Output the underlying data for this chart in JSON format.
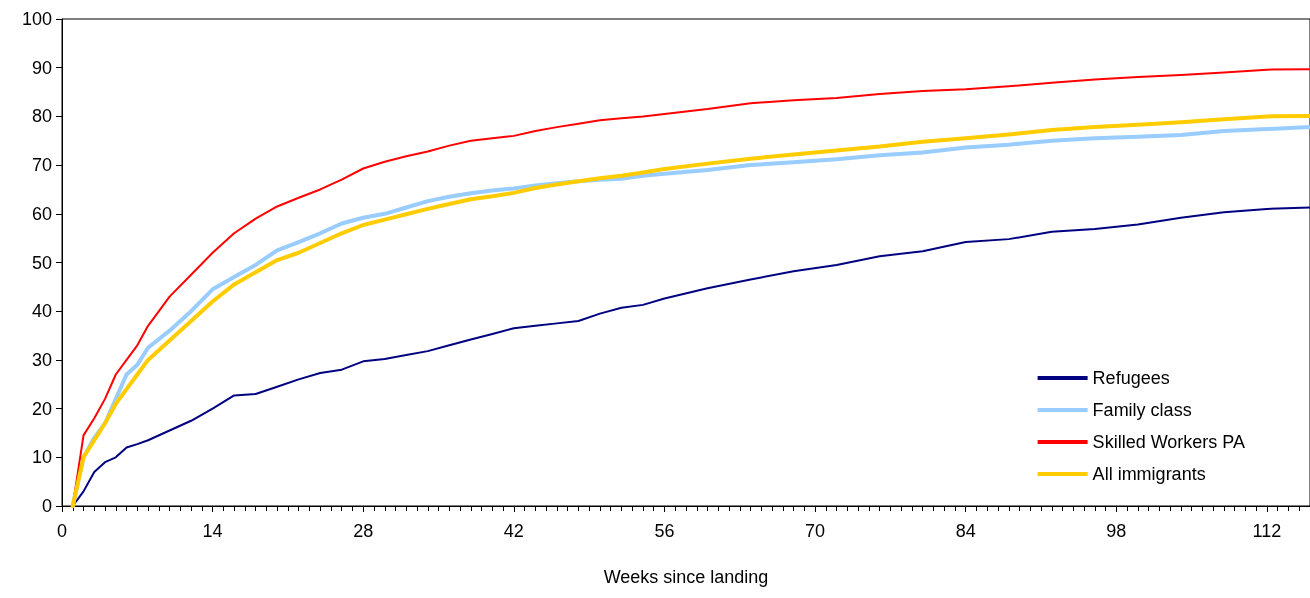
{
  "chart_data": {
    "type": "line",
    "xlabel": "Weeks since landing",
    "x": [
      1,
      2,
      3,
      4,
      5,
      6,
      7,
      8,
      10,
      12,
      14,
      16,
      18,
      20,
      22,
      24,
      26,
      28,
      30,
      32,
      34,
      36,
      38,
      40,
      42,
      44,
      46,
      48,
      50,
      52,
      54,
      56,
      60,
      64,
      68,
      72,
      76,
      80,
      84,
      88,
      92,
      96,
      100,
      104,
      108,
      112,
      116
    ],
    "xlim": [
      0,
      116
    ],
    "xticks": [
      0,
      14,
      28,
      42,
      56,
      70,
      84,
      98,
      112
    ],
    "ylim": [
      0,
      100
    ],
    "yticks": [
      0,
      10,
      20,
      30,
      40,
      50,
      60,
      70,
      80,
      90,
      100
    ],
    "grid": false,
    "legend": "bottom right",
    "marker": "none",
    "line_style": "solid",
    "series": [
      {
        "name": "Refugees",
        "color": "#000080",
        "values": [
          0,
          3,
          7,
          9,
          10,
          12,
          12.7,
          13.5,
          15.5,
          17.5,
          20,
          22.7,
          23,
          24.5,
          26,
          27.3,
          28,
          29.7,
          30.2,
          31,
          31.8,
          33,
          34.2,
          35.3,
          36.5,
          37,
          37.5,
          38,
          39.5,
          40.7,
          41.3,
          42.6,
          44.7,
          46.5,
          48.2,
          49.5,
          51.3,
          52.3,
          54.2,
          54.8,
          56.3,
          56.9,
          57.8,
          59.2,
          60.3,
          61,
          61.3
        ]
      },
      {
        "name": "Family class",
        "color": "#99ccff",
        "values": [
          0,
          10,
          14,
          17,
          22,
          27,
          29,
          32.5,
          36,
          40,
          44.5,
          47,
          49.5,
          52.5,
          54.2,
          56,
          58,
          59.2,
          60,
          61.3,
          62.6,
          63.5,
          64.2,
          64.8,
          65.2,
          65.8,
          66.3,
          66.7,
          67,
          67.2,
          67.8,
          68.2,
          69,
          70,
          70.6,
          71.2,
          72,
          72.6,
          73.6,
          74.2,
          75,
          75.5,
          75.8,
          76.2,
          77,
          77.4,
          77.8
        ]
      },
      {
        "name": "Skilled Workers PA",
        "color": "#ff0000",
        "values": [
          0,
          14.5,
          18,
          22,
          27,
          30,
          33,
          37,
          43,
          47.5,
          52,
          56,
          59,
          61.5,
          63.3,
          65,
          67,
          69.3,
          70.7,
          71.8,
          72.8,
          74,
          75,
          75.5,
          76,
          77,
          77.8,
          78.5,
          79.2,
          79.6,
          80,
          80.5,
          81.5,
          82.7,
          83.3,
          83.8,
          84.6,
          85.2,
          85.6,
          86.2,
          86.9,
          87.6,
          88.1,
          88.5,
          89,
          89.6,
          89.7
        ]
      },
      {
        "name": "All immigrants",
        "color": "#ffcc00",
        "values": [
          0,
          10,
          13.5,
          17,
          21,
          24,
          27,
          30,
          34,
          38,
          42,
          45.5,
          48,
          50.5,
          52,
          54,
          56,
          57.7,
          58.8,
          59.9,
          61,
          62,
          63,
          63.6,
          64.3,
          65.3,
          66,
          66.7,
          67.3,
          67.8,
          68.5,
          69.2,
          70.3,
          71.3,
          72.2,
          73,
          73.8,
          74.8,
          75.5,
          76.3,
          77.2,
          77.8,
          78.3,
          78.8,
          79.4,
          80,
          80.1
        ]
      }
    ]
  }
}
